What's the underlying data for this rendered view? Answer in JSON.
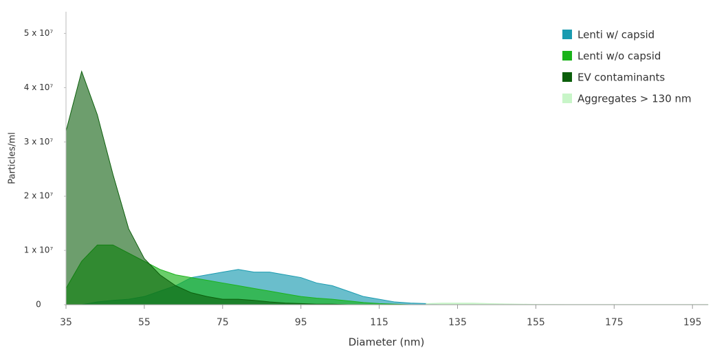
{
  "chart_data": {
    "type": "area",
    "x_label": "Diameter (nm)",
    "y_label": "Particles/ml",
    "x": [
      35,
      39,
      43,
      47,
      51,
      55,
      59,
      63,
      67,
      71,
      75,
      79,
      83,
      87,
      91,
      95,
      99,
      103,
      107,
      111,
      115,
      119,
      123,
      127,
      131,
      135,
      139,
      143,
      147,
      151,
      155,
      159,
      163,
      167,
      171,
      175,
      179,
      183,
      187,
      191,
      195,
      199
    ],
    "series": [
      {
        "name": "Lenti w/ capsid",
        "color": "#1a9bb0",
        "values": [
          0,
          0,
          500000,
          800000,
          1000000,
          1500000,
          2500000,
          3500000,
          5000000,
          5500000,
          6000000,
          6500000,
          6000000,
          6000000,
          5500000,
          5000000,
          4000000,
          3500000,
          2500000,
          1500000,
          1000000,
          500000,
          300000,
          200000,
          0,
          0,
          0,
          0,
          0,
          0,
          0,
          0,
          0,
          0,
          0,
          0,
          0,
          0,
          0,
          0,
          0,
          0
        ]
      },
      {
        "name": "Aggregates > 130 nm",
        "color": "#c8f5c8",
        "values": [
          null,
          null,
          null,
          null,
          null,
          null,
          null,
          null,
          null,
          null,
          null,
          null,
          null,
          null,
          null,
          null,
          null,
          null,
          null,
          null,
          null,
          null,
          null,
          200000,
          300000,
          300000,
          300000,
          200000,
          150000,
          100000,
          50000,
          40000,
          30000,
          30000,
          30000,
          30000,
          30000,
          30000,
          30000,
          30000,
          30000,
          30000
        ]
      },
      {
        "name": "Lenti w/o capsid",
        "color": "#1ab31a",
        "values": [
          3000000,
          8000000,
          11000000,
          11000000,
          9500000,
          8000000,
          6500000,
          5500000,
          5000000,
          4500000,
          4000000,
          3500000,
          3000000,
          2500000,
          2000000,
          1500000,
          1200000,
          1000000,
          700000,
          400000,
          200000,
          100000,
          0,
          0,
          0,
          0,
          0,
          0,
          0,
          0,
          0,
          0,
          0,
          0,
          0,
          0,
          0,
          0,
          0,
          0,
          0,
          0
        ]
      },
      {
        "name": "EV contaminants",
        "color": "#0b5e0b",
        "values": [
          32000000,
          43000000,
          35000000,
          24000000,
          14000000,
          8500000,
          5500000,
          3500000,
          2200000,
          1500000,
          1000000,
          1000000,
          800000,
          500000,
          300000,
          200000,
          100000,
          100000,
          0,
          0,
          0,
          0,
          0,
          0,
          0,
          0,
          0,
          0,
          0,
          0,
          0,
          0,
          0,
          0,
          0,
          0,
          0,
          0,
          0,
          0,
          0,
          0
        ]
      }
    ],
    "xlim": [
      35,
      199
    ],
    "xticks": [
      35,
      55,
      75,
      95,
      115,
      135,
      155,
      175,
      195
    ],
    "ylim": [
      0,
      54000000
    ],
    "yticks": [
      0,
      {
        "value": 10000000,
        "label": "1 x 10⁷"
      },
      {
        "value": 20000000,
        "label": "2 x 10⁷"
      },
      {
        "value": 30000000,
        "label": "3 x 10⁷"
      },
      {
        "value": 40000000,
        "label": "4 x 10⁷"
      },
      {
        "value": 50000000,
        "label": "5 x 10⁷"
      }
    ],
    "legend": "top-right"
  }
}
